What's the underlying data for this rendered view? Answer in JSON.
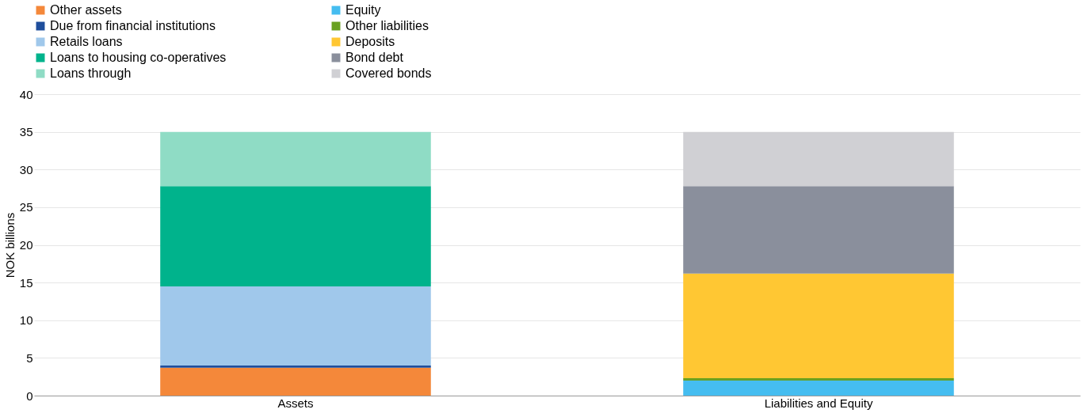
{
  "chart_data": {
    "type": "bar",
    "stacked": true,
    "ylabel": "NOK billions",
    "categories": [
      "Assets",
      "Liabilities and Equity"
    ],
    "series": [
      {
        "name": "Other assets",
        "color": "#f4883a",
        "values": [
          3.7,
          null
        ]
      },
      {
        "name": "Due from financial institutions",
        "color": "#1f4e9c",
        "values": [
          0.3,
          null
        ]
      },
      {
        "name": "Retails loans",
        "color": "#a0c8eb",
        "values": [
          10.5,
          null
        ]
      },
      {
        "name": "Loans to housing co-operatives",
        "color": "#00b38c",
        "values": [
          13.3,
          null
        ]
      },
      {
        "name": "Loans through",
        "color": "#8fdcc5",
        "values": [
          7.2,
          null
        ]
      },
      {
        "name": "Equity",
        "color": "#45bdf0",
        "values": [
          null,
          2.0
        ]
      },
      {
        "name": "Other liabilities",
        "color": "#6aa121",
        "values": [
          null,
          0.3
        ]
      },
      {
        "name": "Deposits",
        "color": "#ffc733",
        "values": [
          null,
          13.9
        ]
      },
      {
        "name": "Bond debt",
        "color": "#8a8f9c",
        "values": [
          null,
          11.6
        ]
      },
      {
        "name": "Covered bonds",
        "color": "#d0d0d4",
        "values": [
          null,
          7.2
        ]
      }
    ],
    "ylim": [
      0,
      40
    ],
    "yticks": [
      0,
      5,
      10,
      15,
      20,
      25,
      30,
      35,
      40
    ],
    "grid": "y",
    "legend": "top"
  }
}
